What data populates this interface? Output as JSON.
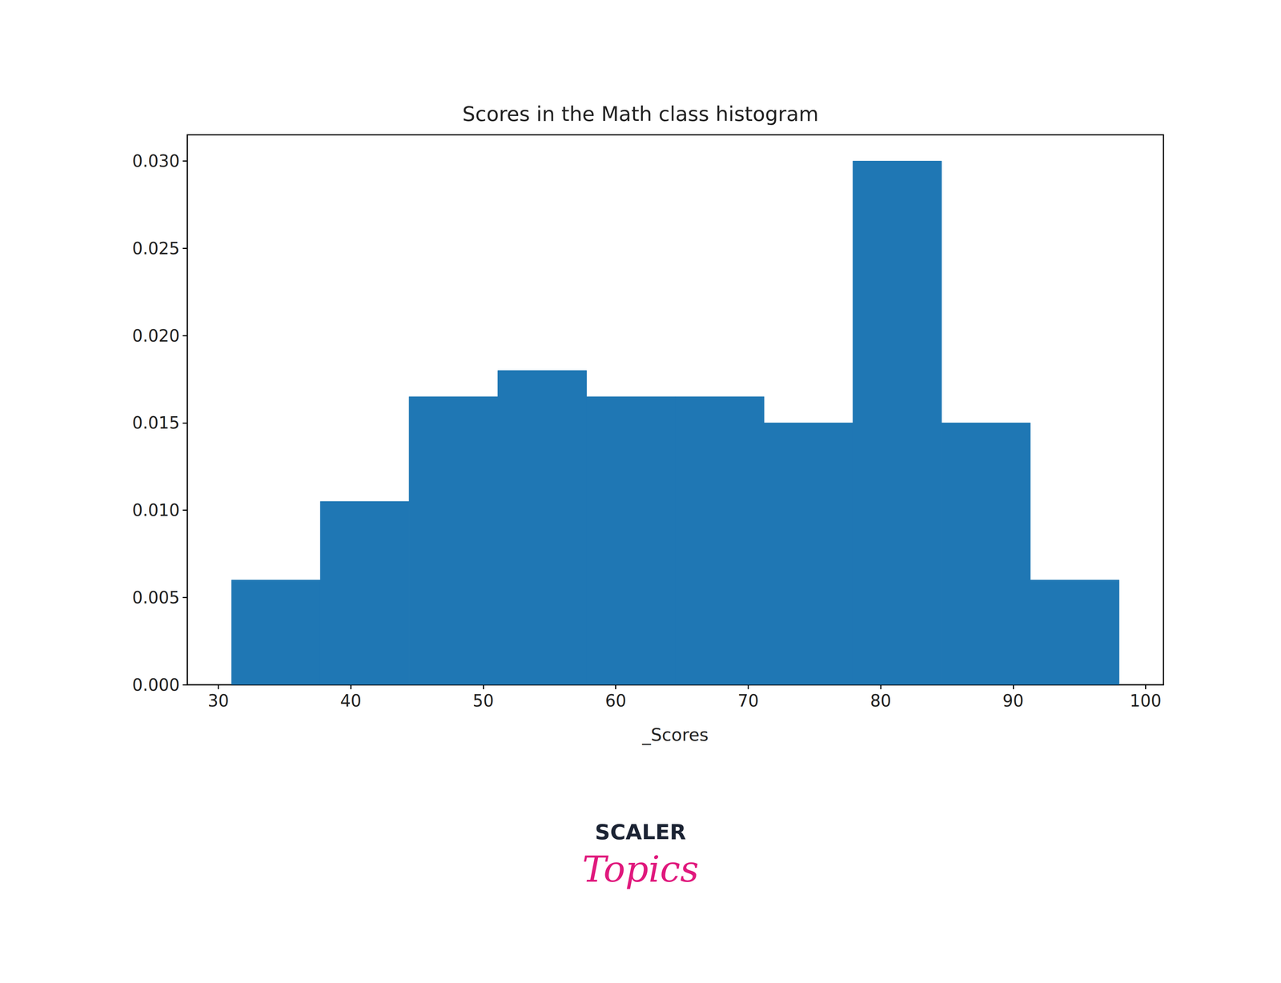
{
  "chart_data": {
    "type": "histogram",
    "title": "Scores in the Math class histogram",
    "x_label": "_Scores",
    "bins": [
      31,
      37.7,
      44.4,
      51.1,
      57.8,
      64.5,
      71.2,
      77.9,
      84.6,
      91.3,
      98
    ],
    "values": [
      0.006,
      0.0105,
      0.0165,
      0.018,
      0.0165,
      0.0165,
      0.015,
      0.03,
      0.015,
      0.006
    ],
    "color": "#1f77b4",
    "xlim": [
      27.65,
      101.35
    ],
    "xticks": [
      30,
      40,
      50,
      60,
      70,
      80,
      90,
      100
    ],
    "ylim": [
      0,
      0.0315
    ],
    "yticks": [
      {
        "value": 0,
        "label": "0.000"
      },
      {
        "value": 0.005,
        "label": "0.005"
      },
      {
        "value": 0.01,
        "label": "0.010"
      },
      {
        "value": 0.015,
        "label": "0.015"
      },
      {
        "value": 0.02,
        "label": "0.020"
      },
      {
        "value": 0.025,
        "label": "0.025"
      },
      {
        "value": 0.03,
        "label": "0.030"
      }
    ],
    "grid": false,
    "logo": [
      "SCALER",
      "Topics"
    ]
  }
}
